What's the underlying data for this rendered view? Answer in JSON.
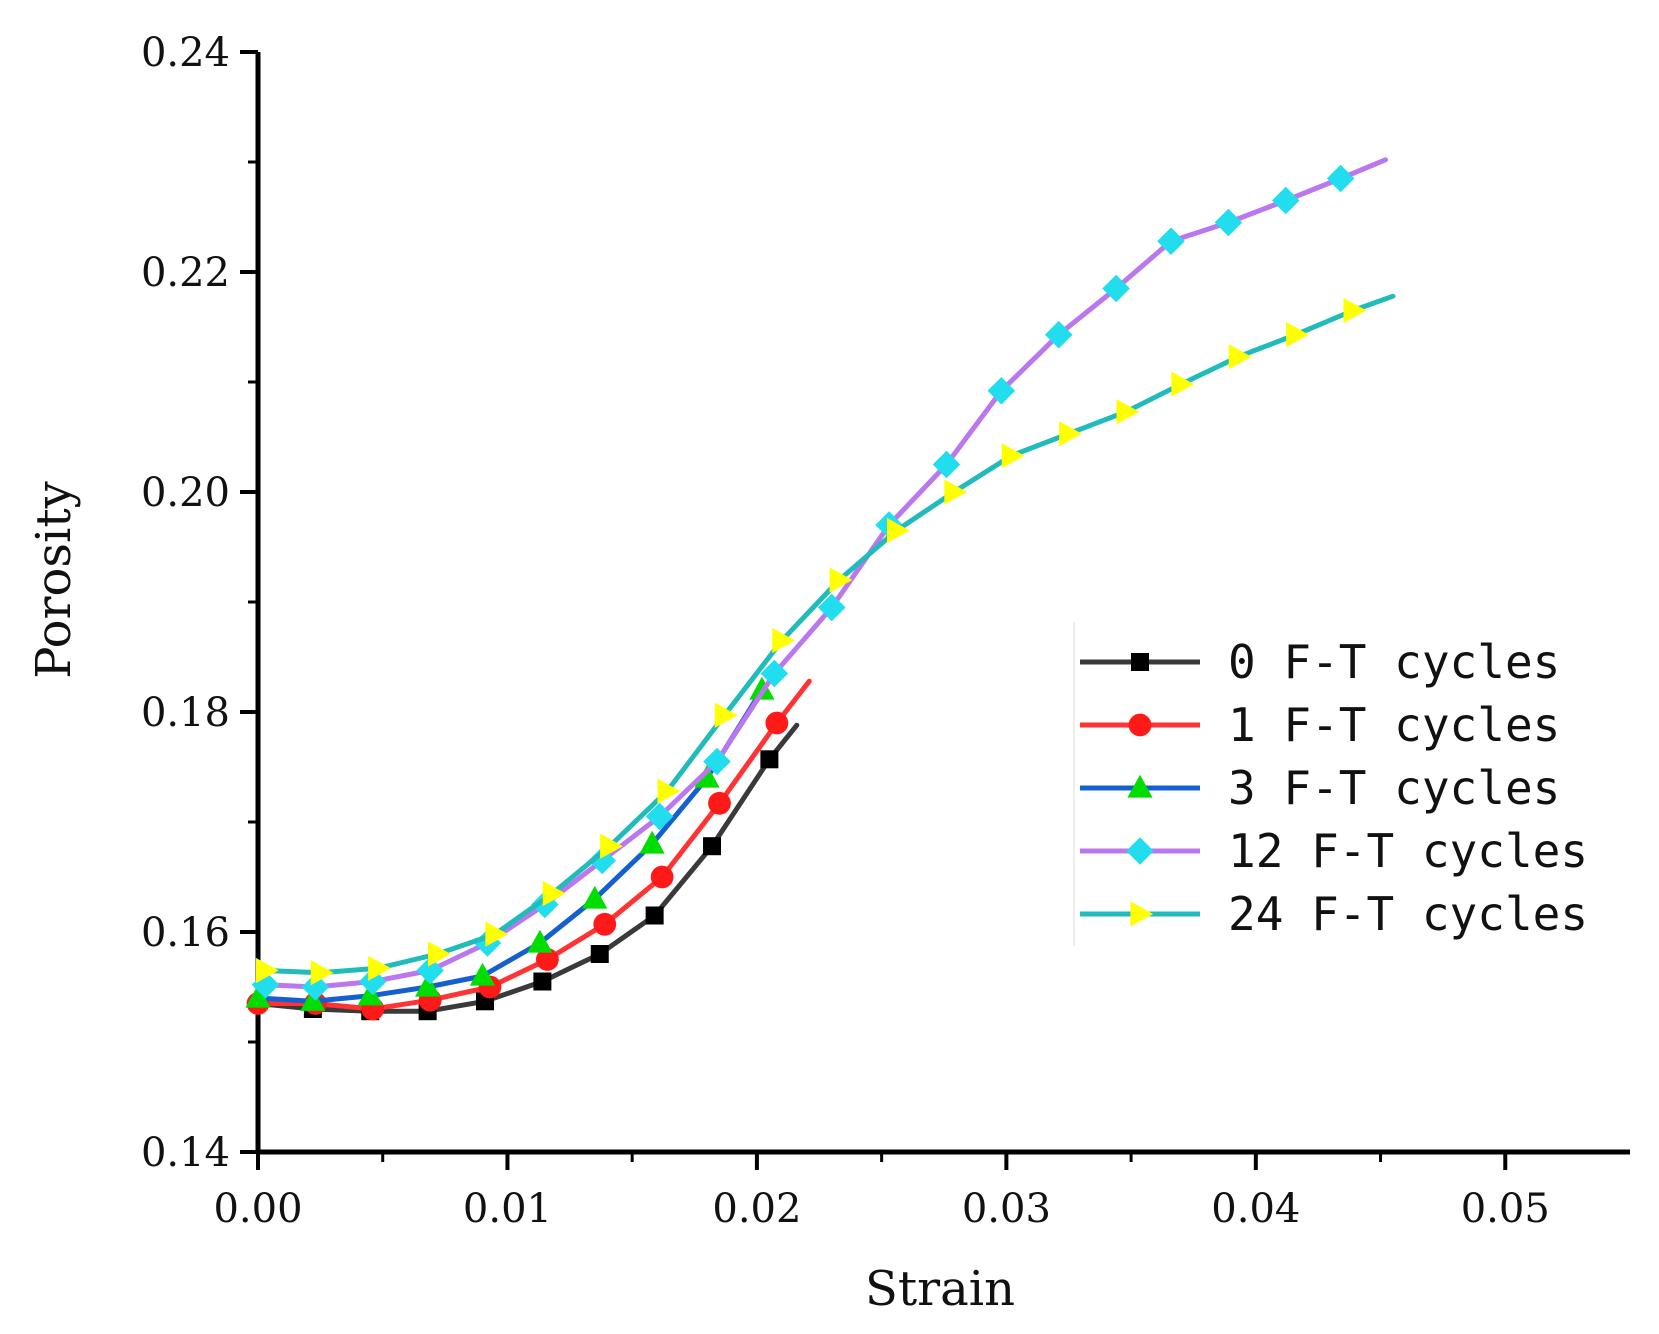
{
  "chart_data": {
    "type": "line",
    "title": "",
    "xlabel": "Strain",
    "ylabel": "Porosity",
    "xlim": [
      0,
      0.055
    ],
    "ylim": [
      0.14,
      0.24
    ],
    "xticks": [
      {
        "value": 0.0,
        "label": "0.00"
      },
      {
        "value": 0.01,
        "label": "0.01"
      },
      {
        "value": 0.02,
        "label": "0.02"
      },
      {
        "value": 0.03,
        "label": "0.03"
      },
      {
        "value": 0.04,
        "label": "0.04"
      },
      {
        "value": 0.05,
        "label": "0.05"
      }
    ],
    "yticks": [
      {
        "value": 0.14,
        "label": "0.14"
      },
      {
        "value": 0.16,
        "label": "0.16"
      },
      {
        "value": 0.18,
        "label": "0.18"
      },
      {
        "value": 0.2,
        "label": "0.20"
      },
      {
        "value": 0.22,
        "label": "0.22"
      },
      {
        "value": 0.24,
        "label": "0.24"
      }
    ],
    "grid": false,
    "legend_position": "right",
    "series": [
      {
        "name": "0 F-T cycles",
        "color": "#3a3a3a",
        "marker": "square",
        "marker_color": "#000000",
        "x": [
          0.0,
          0.0022,
          0.0045,
          0.0068,
          0.0091,
          0.0114,
          0.0137,
          0.0159,
          0.0182,
          0.0205,
          0.0216
        ],
        "y": [
          0.1535,
          0.153,
          0.1528,
          0.1528,
          0.1537,
          0.1555,
          0.158,
          0.1615,
          0.1678,
          0.1757,
          0.1788
        ],
        "markers_x": [
          0.0022,
          0.0045,
          0.0068,
          0.0091,
          0.0114,
          0.0137,
          0.0159,
          0.0182,
          0.0205
        ],
        "markers_y": [
          0.153,
          0.1528,
          0.1528,
          0.1537,
          0.1555,
          0.158,
          0.1615,
          0.1678,
          0.1757
        ]
      },
      {
        "name": "1 F-T cycles",
        "color": "#ff3333",
        "marker": "circle",
        "marker_color": "#ff1a1a",
        "x": [
          0.0,
          0.0023,
          0.0046,
          0.0069,
          0.0093,
          0.0116,
          0.0139,
          0.0162,
          0.0185,
          0.0208,
          0.0221
        ],
        "y": [
          0.1535,
          0.1535,
          0.153,
          0.1538,
          0.155,
          0.1575,
          0.1607,
          0.165,
          0.1717,
          0.179,
          0.1828
        ],
        "markers_x": [
          0.0,
          0.0023,
          0.0046,
          0.0069,
          0.0093,
          0.0116,
          0.0139,
          0.0162,
          0.0185,
          0.0208
        ],
        "markers_y": [
          0.1535,
          0.1535,
          0.153,
          0.1538,
          0.155,
          0.1575,
          0.1607,
          0.165,
          0.1717,
          0.179
        ]
      },
      {
        "name": "3 F-T cycles",
        "color": "#1560d0",
        "marker": "triangle-up",
        "marker_color": "#00dd00",
        "x": [
          0.0,
          0.0022,
          0.0045,
          0.0068,
          0.009,
          0.0113,
          0.0135,
          0.0158,
          0.018,
          0.0202
        ],
        "y": [
          0.154,
          0.1537,
          0.1542,
          0.155,
          0.156,
          0.159,
          0.163,
          0.168,
          0.174,
          0.182
        ],
        "markers_x": [
          0.0,
          0.0022,
          0.0045,
          0.0068,
          0.009,
          0.0113,
          0.0135,
          0.0158,
          0.018,
          0.0202
        ],
        "markers_y": [
          0.154,
          0.1537,
          0.1542,
          0.155,
          0.156,
          0.159,
          0.163,
          0.168,
          0.174,
          0.182
        ]
      },
      {
        "name": "12 F-T cycles",
        "color": "#bb77ee",
        "marker": "diamond",
        "marker_color": "#22ddee",
        "x": [
          0.0003,
          0.0023,
          0.0046,
          0.0069,
          0.0092,
          0.0115,
          0.0138,
          0.0161,
          0.0184,
          0.0207,
          0.023,
          0.0253,
          0.0276,
          0.0298,
          0.0321,
          0.0344,
          0.0366,
          0.0389,
          0.0412,
          0.0434,
          0.0452
        ],
        "y": [
          0.1552,
          0.155,
          0.1555,
          0.1565,
          0.159,
          0.1625,
          0.1665,
          0.1705,
          0.1755,
          0.1835,
          0.1895,
          0.197,
          0.2025,
          0.2092,
          0.2143,
          0.2185,
          0.2228,
          0.2245,
          0.2265,
          0.2285,
          0.2302
        ],
        "markers_x": [
          0.0003,
          0.0023,
          0.0046,
          0.0069,
          0.0092,
          0.0115,
          0.0138,
          0.0161,
          0.0184,
          0.0207,
          0.023,
          0.0253,
          0.0276,
          0.0298,
          0.0321,
          0.0344,
          0.0366,
          0.0389,
          0.0412,
          0.0434
        ],
        "markers_y": [
          0.1552,
          0.155,
          0.1555,
          0.1565,
          0.159,
          0.1625,
          0.1665,
          0.1705,
          0.1755,
          0.1835,
          0.1895,
          0.197,
          0.2025,
          0.2092,
          0.2143,
          0.2185,
          0.2228,
          0.2245,
          0.2265,
          0.2285
        ]
      },
      {
        "name": "24 F-T cycles",
        "color": "#22bbbb",
        "marker": "triangle-right",
        "marker_color": "#ffff00",
        "x": [
          0.0003,
          0.0025,
          0.0048,
          0.0072,
          0.0095,
          0.0118,
          0.0141,
          0.0164,
          0.0187,
          0.021,
          0.0233,
          0.0256,
          0.0279,
          0.0302,
          0.0325,
          0.0348,
          0.037,
          0.0393,
          0.0416,
          0.0439,
          0.0455
        ],
        "y": [
          0.1565,
          0.1563,
          0.1567,
          0.158,
          0.1598,
          0.1635,
          0.1678,
          0.1728,
          0.1797,
          0.1865,
          0.192,
          0.1965,
          0.2,
          0.2033,
          0.2053,
          0.2073,
          0.2098,
          0.2123,
          0.2143,
          0.2165,
          0.2178
        ],
        "markers_x": [
          0.0003,
          0.0025,
          0.0048,
          0.0072,
          0.0095,
          0.0118,
          0.0141,
          0.0164,
          0.0187,
          0.021,
          0.0233,
          0.0256,
          0.0279,
          0.0302,
          0.0325,
          0.0348,
          0.037,
          0.0393,
          0.0416,
          0.0439
        ],
        "markers_y": [
          0.1565,
          0.1563,
          0.1567,
          0.158,
          0.1598,
          0.1635,
          0.1678,
          0.1728,
          0.1797,
          0.1865,
          0.192,
          0.1965,
          0.2,
          0.2033,
          0.2053,
          0.2073,
          0.2098,
          0.2123,
          0.2143,
          0.2165
        ]
      }
    ]
  }
}
